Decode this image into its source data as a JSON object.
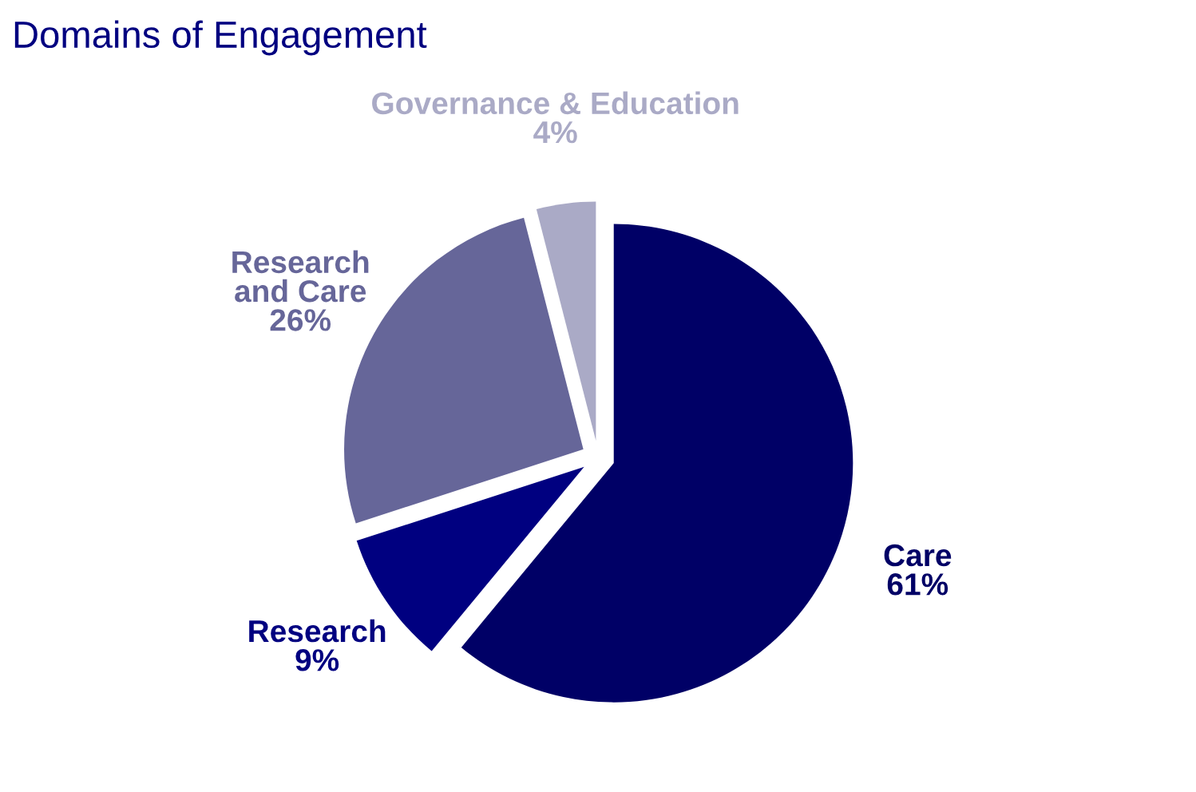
{
  "chart_data": {
    "type": "pie",
    "title": "Domains of Engagement",
    "categories": [
      "Care",
      "Research",
      "Research\nand Care",
      "Governance & Education"
    ],
    "values": [
      61,
      9,
      26,
      4
    ],
    "value_labels": [
      "61%",
      "9%",
      "26%",
      "4%"
    ],
    "colors": [
      "#000066",
      "#000080",
      "#666699",
      "#aaaac6"
    ],
    "legend": false
  }
}
